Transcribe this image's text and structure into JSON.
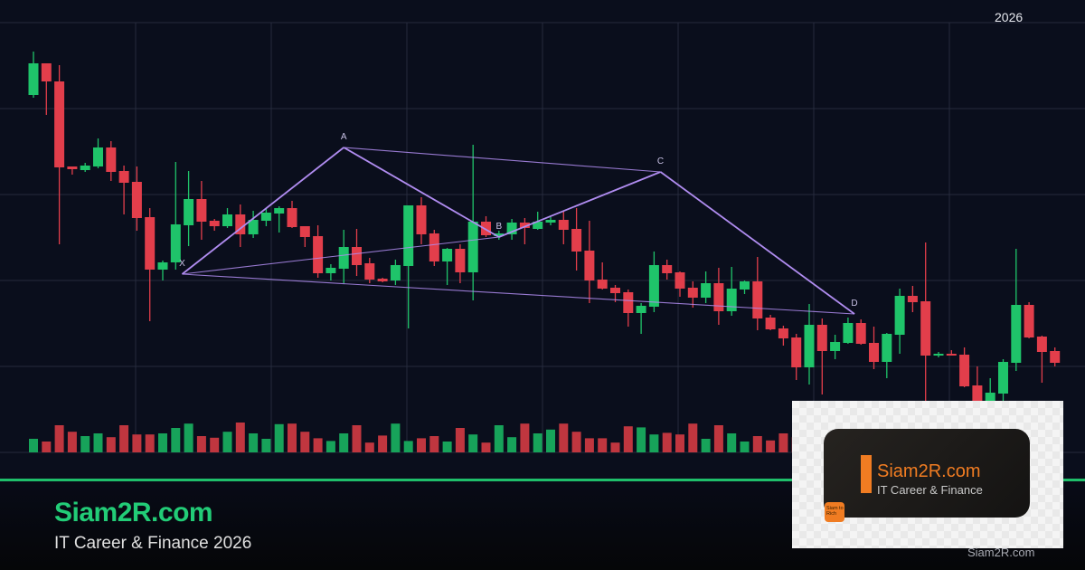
{
  "header": {
    "year_label": "2026"
  },
  "footer": {
    "brand": "Siam2R.com",
    "tagline": "IT Career & Finance 2026"
  },
  "logo": {
    "title": "Siam2R.com",
    "subtitle": "IT Career & Finance",
    "badge": "Siam to Rich",
    "watermark": "Siam2R.com"
  },
  "colors": {
    "background": "#0a0e1c",
    "up": "#1fc46a",
    "down": "#e23e4b",
    "pattern": "#b08cf0",
    "grid": "#262b3d",
    "brand_green": "#22cc77",
    "logo_orange": "#f07c22"
  },
  "chart_data": {
    "type": "candlestick",
    "title": "",
    "xlabel": "",
    "ylabel": "",
    "grid": true,
    "ylim": [
      0,
      53
    ],
    "candles": [
      {
        "o": 42.5,
        "h": 47.3,
        "l": 42.2,
        "c": 46.0
      },
      {
        "o": 46.0,
        "h": 46.0,
        "l": 40.3,
        "c": 44.0
      },
      {
        "o": 44.0,
        "h": 45.8,
        "l": 26.0,
        "c": 34.5
      },
      {
        "o": 34.6,
        "h": 34.6,
        "l": 33.7,
        "c": 34.3
      },
      {
        "o": 34.2,
        "h": 35.0,
        "l": 34.0,
        "c": 34.7
      },
      {
        "o": 34.6,
        "h": 37.7,
        "l": 34.4,
        "c": 36.7
      },
      {
        "o": 36.7,
        "h": 37.4,
        "l": 33.0,
        "c": 34.0
      },
      {
        "o": 34.1,
        "h": 34.7,
        "l": 29.3,
        "c": 32.8
      },
      {
        "o": 32.9,
        "h": 34.6,
        "l": 27.5,
        "c": 28.9
      },
      {
        "o": 29.0,
        "h": 30.0,
        "l": 17.5,
        "c": 23.2
      },
      {
        "o": 23.2,
        "h": 24.2,
        "l": 22.0,
        "c": 24.0
      },
      {
        "o": 24.0,
        "h": 35.1,
        "l": 23.2,
        "c": 28.2
      },
      {
        "o": 28.1,
        "h": 34.1,
        "l": 25.8,
        "c": 31.0
      },
      {
        "o": 31.0,
        "h": 33.0,
        "l": 26.5,
        "c": 28.5
      },
      {
        "o": 28.6,
        "h": 28.8,
        "l": 27.5,
        "c": 28.0
      },
      {
        "o": 28.0,
        "h": 30.0,
        "l": 27.8,
        "c": 29.3
      },
      {
        "o": 29.3,
        "h": 30.4,
        "l": 25.7,
        "c": 27.1
      },
      {
        "o": 27.1,
        "h": 29.7,
        "l": 26.7,
        "c": 28.7
      },
      {
        "o": 28.6,
        "h": 30.0,
        "l": 28.0,
        "c": 29.5
      },
      {
        "o": 29.4,
        "h": 30.2,
        "l": 27.3,
        "c": 30.0
      },
      {
        "o": 30.0,
        "h": 30.8,
        "l": 27.8,
        "c": 27.9
      },
      {
        "o": 28.0,
        "h": 28.0,
        "l": 25.7,
        "c": 26.8
      },
      {
        "o": 26.9,
        "h": 28.1,
        "l": 22.3,
        "c": 22.8
      },
      {
        "o": 22.8,
        "h": 23.8,
        "l": 22.0,
        "c": 23.4
      },
      {
        "o": 23.3,
        "h": 27.6,
        "l": 21.7,
        "c": 25.7
      },
      {
        "o": 25.7,
        "h": 27.7,
        "l": 22.5,
        "c": 23.7
      },
      {
        "o": 23.9,
        "h": 24.5,
        "l": 21.7,
        "c": 22.1
      },
      {
        "o": 22.2,
        "h": 22.3,
        "l": 21.8,
        "c": 21.9
      },
      {
        "o": 22.0,
        "h": 24.3,
        "l": 21.5,
        "c": 23.7
      },
      {
        "o": 23.6,
        "h": 30.3,
        "l": 16.7,
        "c": 30.3
      },
      {
        "o": 30.3,
        "h": 31.2,
        "l": 26.0,
        "c": 27.1
      },
      {
        "o": 27.2,
        "h": 27.6,
        "l": 23.6,
        "c": 24.1
      },
      {
        "o": 24.1,
        "h": 25.6,
        "l": 21.5,
        "c": 25.5
      },
      {
        "o": 25.5,
        "h": 26.0,
        "l": 21.7,
        "c": 22.9
      },
      {
        "o": 22.9,
        "h": 37.0,
        "l": 19.8,
        "c": 28.5
      },
      {
        "o": 28.5,
        "h": 29.1,
        "l": 26.8,
        "c": 27.0
      },
      {
        "o": 26.9,
        "h": 27.5,
        "l": 26.5,
        "c": 27.2
      },
      {
        "o": 27.1,
        "h": 28.8,
        "l": 26.5,
        "c": 28.4
      },
      {
        "o": 28.4,
        "h": 28.9,
        "l": 26.0,
        "c": 27.8
      },
      {
        "o": 27.7,
        "h": 29.6,
        "l": 27.6,
        "c": 28.5
      },
      {
        "o": 28.4,
        "h": 29.0,
        "l": 28.1,
        "c": 28.7
      },
      {
        "o": 28.7,
        "h": 29.7,
        "l": 26.0,
        "c": 27.6
      },
      {
        "o": 27.7,
        "h": 30.0,
        "l": 23.1,
        "c": 25.2
      },
      {
        "o": 25.3,
        "h": 28.6,
        "l": 19.5,
        "c": 22.0
      },
      {
        "o": 22.1,
        "h": 24.0,
        "l": 21.0,
        "c": 21.1
      },
      {
        "o": 21.2,
        "h": 21.5,
        "l": 19.6,
        "c": 20.6
      },
      {
        "o": 20.7,
        "h": 21.0,
        "l": 16.9,
        "c": 18.4
      },
      {
        "o": 18.4,
        "h": 19.5,
        "l": 16.1,
        "c": 19.2
      },
      {
        "o": 19.1,
        "h": 25.2,
        "l": 18.5,
        "c": 23.7
      },
      {
        "o": 23.7,
        "h": 24.3,
        "l": 22.1,
        "c": 22.8
      },
      {
        "o": 22.9,
        "h": 23.0,
        "l": 20.2,
        "c": 21.1
      },
      {
        "o": 21.2,
        "h": 21.9,
        "l": 19.0,
        "c": 20.1
      },
      {
        "o": 20.1,
        "h": 23.0,
        "l": 19.5,
        "c": 21.7
      },
      {
        "o": 21.7,
        "h": 23.4,
        "l": 17.1,
        "c": 18.6
      },
      {
        "o": 18.6,
        "h": 23.5,
        "l": 18.1,
        "c": 21.1
      },
      {
        "o": 21.0,
        "h": 22.0,
        "l": 20.5,
        "c": 21.9
      },
      {
        "o": 21.9,
        "h": 24.6,
        "l": 16.5,
        "c": 17.8
      },
      {
        "o": 17.9,
        "h": 18.2,
        "l": 16.5,
        "c": 16.6
      },
      {
        "o": 16.7,
        "h": 17.0,
        "l": 14.8,
        "c": 15.6
      },
      {
        "o": 15.7,
        "h": 16.1,
        "l": 11.0,
        "c": 12.4
      },
      {
        "o": 12.4,
        "h": 19.4,
        "l": 10.5,
        "c": 17.1
      },
      {
        "o": 17.1,
        "h": 17.8,
        "l": 9.4,
        "c": 14.2
      },
      {
        "o": 14.2,
        "h": 16.0,
        "l": 13.3,
        "c": 15.2
      },
      {
        "o": 15.1,
        "h": 17.9,
        "l": 15.0,
        "c": 17.3
      },
      {
        "o": 17.3,
        "h": 17.7,
        "l": 14.9,
        "c": 15.0
      },
      {
        "o": 15.1,
        "h": 16.9,
        "l": 12.2,
        "c": 13.0
      },
      {
        "o": 13.0,
        "h": 16.2,
        "l": 11.2,
        "c": 16.1
      },
      {
        "o": 16.0,
        "h": 21.1,
        "l": 13.9,
        "c": 20.3
      },
      {
        "o": 20.3,
        "h": 21.4,
        "l": 18.5,
        "c": 19.6
      },
      {
        "o": 19.7,
        "h": 26.2,
        "l": 8.0,
        "c": 13.7
      },
      {
        "o": 13.7,
        "h": 14.1,
        "l": 13.5,
        "c": 13.9
      },
      {
        "o": 13.9,
        "h": 14.3,
        "l": 13.7,
        "c": 13.7
      },
      {
        "o": 13.8,
        "h": 14.6,
        "l": 10.2,
        "c": 10.3
      },
      {
        "o": 10.4,
        "h": 12.5,
        "l": 8.5,
        "c": 8.5
      },
      {
        "o": 8.5,
        "h": 11.2,
        "l": 8.5,
        "c": 9.6
      },
      {
        "o": 9.5,
        "h": 13.3,
        "l": 8.5,
        "c": 13.0
      },
      {
        "o": 12.9,
        "h": 25.5,
        "l": 12.0,
        "c": 19.3
      },
      {
        "o": 19.3,
        "h": 19.6,
        "l": 15.6,
        "c": 15.7
      },
      {
        "o": 15.8,
        "h": 15.9,
        "l": 10.7,
        "c": 14.1
      },
      {
        "o": 14.2,
        "h": 14.6,
        "l": 12.5,
        "c": 12.9
      }
    ],
    "volume": [
      25,
      20,
      50,
      38,
      30,
      35,
      28,
      50,
      33,
      33,
      35,
      45,
      53,
      30,
      27,
      38,
      55,
      35,
      25,
      52,
      53,
      38,
      26,
      21,
      35,
      50,
      18,
      31,
      53,
      21,
      26,
      30,
      20,
      45,
      33,
      18,
      50,
      28,
      53,
      35,
      42,
      53,
      38,
      26,
      26,
      18,
      48,
      46,
      33,
      36,
      33,
      53,
      25,
      50,
      35,
      20,
      30,
      22,
      35,
      28,
      40,
      30,
      25,
      20,
      30,
      22,
      35,
      40,
      25,
      45,
      20,
      22,
      30,
      35,
      25,
      20,
      45,
      30,
      25,
      20
    ],
    "pattern": {
      "points": [
        {
          "label": "X",
          "index": 11.5,
          "price": 22.7
        },
        {
          "label": "A",
          "index": 24,
          "price": 36.7
        },
        {
          "label": "B",
          "index": 36,
          "price": 26.8
        },
        {
          "label": "C",
          "index": 48.5,
          "price": 34.0
        },
        {
          "label": "D",
          "index": 63.5,
          "price": 18.3
        }
      ],
      "lines": [
        [
          "X",
          "A"
        ],
        [
          "A",
          "B"
        ],
        [
          "B",
          "C"
        ],
        [
          "C",
          "D"
        ],
        [
          "X",
          "B"
        ],
        [
          "A",
          "C"
        ],
        [
          "X",
          "D"
        ]
      ]
    }
  }
}
